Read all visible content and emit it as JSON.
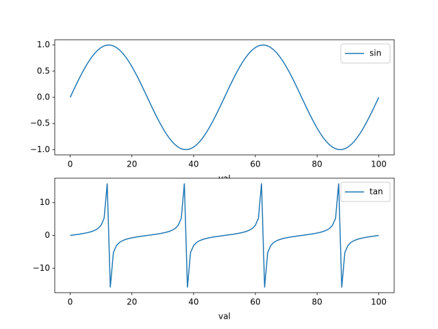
{
  "chart_data": [
    {
      "type": "line",
      "x_label": "val",
      "legend": "upper right",
      "grid": false,
      "x": [
        0,
        1,
        2,
        3,
        4,
        5,
        6,
        7,
        8,
        9,
        10,
        11,
        12,
        13,
        14,
        15,
        16,
        17,
        18,
        19,
        20,
        21,
        22,
        23,
        24,
        25,
        26,
        27,
        28,
        29,
        30,
        31,
        32,
        33,
        34,
        35,
        36,
        37,
        38,
        39,
        40,
        41,
        42,
        43,
        44,
        45,
        46,
        47,
        48,
        49,
        50,
        51,
        52,
        53,
        54,
        55,
        56,
        57,
        58,
        59,
        60,
        61,
        62,
        63,
        64,
        65,
        66,
        67,
        68,
        69,
        70,
        71,
        72,
        73,
        74,
        75,
        76,
        77,
        78,
        79,
        80,
        81,
        82,
        83,
        84,
        85,
        86,
        87,
        88,
        89,
        90,
        91,
        92,
        93,
        94,
        95,
        96,
        97,
        98,
        99,
        100
      ],
      "series": [
        {
          "name": "sin",
          "color": "#1f77b4",
          "values": [
            0,
            0.1253,
            0.2487,
            0.3681,
            0.4818,
            0.5878,
            0.6845,
            0.7705,
            0.8443,
            0.9048,
            0.9511,
            0.9823,
            0.998,
            0.998,
            0.9823,
            0.9511,
            0.9048,
            0.8443,
            0.7705,
            0.6845,
            0.5878,
            0.4818,
            0.3681,
            0.2487,
            0.1253,
            0,
            -0.1253,
            -0.2487,
            -0.3681,
            -0.4818,
            -0.5878,
            -0.6845,
            -0.7705,
            -0.8443,
            -0.9048,
            -0.9511,
            -0.9823,
            -0.998,
            -0.998,
            -0.9823,
            -0.9511,
            -0.9048,
            -0.8443,
            -0.7705,
            -0.6845,
            -0.5878,
            -0.4818,
            -0.3681,
            -0.2487,
            -0.1253,
            0,
            0.1253,
            0.2487,
            0.3681,
            0.4818,
            0.5878,
            0.6845,
            0.7705,
            0.8443,
            0.9048,
            0.9511,
            0.9823,
            0.998,
            0.998,
            0.9823,
            0.9511,
            0.9048,
            0.8443,
            0.7705,
            0.6845,
            0.5878,
            0.4818,
            0.3681,
            0.2487,
            0.1253,
            0,
            -0.1253,
            -0.2487,
            -0.3681,
            -0.4818,
            -0.5878,
            -0.6845,
            -0.7705,
            -0.8443,
            -0.9048,
            -0.9511,
            -0.9823,
            -0.998,
            -0.998,
            -0.9823,
            -0.9511,
            -0.9048,
            -0.8443,
            -0.7705,
            -0.6845,
            -0.5878,
            -0.4818,
            -0.3681,
            -0.2487,
            -0.1253,
            0
          ]
        }
      ],
      "xlim": [
        -5,
        105
      ],
      "xticks": [
        0,
        20,
        40,
        60,
        80,
        100
      ],
      "ylim": [
        -1.1,
        1.1
      ],
      "yticks": [
        {
          "value": -1,
          "label": "−1.0"
        },
        {
          "value": -0.5,
          "label": "−0.5"
        },
        {
          "value": 0,
          "label": "0.0"
        },
        {
          "value": 0.5,
          "label": "0.5"
        },
        {
          "value": 1,
          "label": "1.0"
        }
      ]
    },
    {
      "type": "line",
      "x_label": "val",
      "legend": "upper right",
      "grid": false,
      "x": [
        0,
        1,
        2,
        3,
        4,
        5,
        6,
        7,
        8,
        9,
        10,
        11,
        12,
        13,
        14,
        15,
        16,
        17,
        18,
        19,
        20,
        21,
        22,
        23,
        24,
        25,
        26,
        27,
        28,
        29,
        30,
        31,
        32,
        33,
        34,
        35,
        36,
        37,
        38,
        39,
        40,
        41,
        42,
        43,
        44,
        45,
        46,
        47,
        48,
        49,
        50,
        51,
        52,
        53,
        54,
        55,
        56,
        57,
        58,
        59,
        60,
        61,
        62,
        63,
        64,
        65,
        66,
        67,
        68,
        69,
        70,
        71,
        72,
        73,
        74,
        75,
        76,
        77,
        78,
        79,
        80,
        81,
        82,
        83,
        84,
        85,
        86,
        87,
        88,
        89,
        90,
        91,
        92,
        93,
        94,
        95,
        96,
        97,
        98,
        99,
        100
      ],
      "series": [
        {
          "name": "tan",
          "color": "#1f77b4",
          "values": [
            0,
            0.1263,
            0.2568,
            0.3959,
            0.5498,
            0.7265,
            0.9391,
            1.2088,
            1.5757,
            2.1251,
            3.0777,
            5.2422,
            15.8945,
            -15.8945,
            -5.2422,
            -3.0777,
            -2.1251,
            -1.5757,
            -1.2088,
            -0.9391,
            -0.7265,
            -0.5498,
            -0.3959,
            -0.2568,
            -0.1263,
            0,
            0.1263,
            0.2568,
            0.3959,
            0.5498,
            0.7265,
            0.9391,
            1.2088,
            1.5757,
            2.1251,
            3.0777,
            5.2422,
            15.8945,
            -15.8945,
            -5.2422,
            -3.0777,
            -2.1251,
            -1.5757,
            -1.2088,
            -0.9391,
            -0.7265,
            -0.5498,
            -0.3959,
            -0.2568,
            -0.1263,
            0,
            0.1263,
            0.2568,
            0.3959,
            0.5498,
            0.7265,
            0.9391,
            1.2088,
            1.5757,
            2.1251,
            3.0777,
            5.2422,
            15.8945,
            -15.8945,
            -5.2422,
            -3.0777,
            -2.1251,
            -1.5757,
            -1.2088,
            -0.9391,
            -0.7265,
            -0.5498,
            -0.3959,
            -0.2568,
            -0.1263,
            0,
            0.1263,
            0.2568,
            0.3959,
            0.5498,
            0.7265,
            0.9391,
            1.2088,
            1.5757,
            2.1251,
            3.0777,
            5.2422,
            15.8945,
            -15.8945,
            -5.2422,
            -3.0777,
            -2.1251,
            -1.5757,
            -1.2088,
            -0.9391,
            -0.7265,
            -0.5498,
            -0.3959,
            -0.2568,
            -0.1263,
            0
          ]
        }
      ],
      "xlim": [
        -5,
        105
      ],
      "xticks": [
        0,
        20,
        40,
        60,
        80,
        100
      ],
      "ylim": [
        -17.48,
        17.48
      ],
      "yticks": [
        {
          "value": -10,
          "label": "−10"
        },
        0,
        10
      ]
    }
  ]
}
